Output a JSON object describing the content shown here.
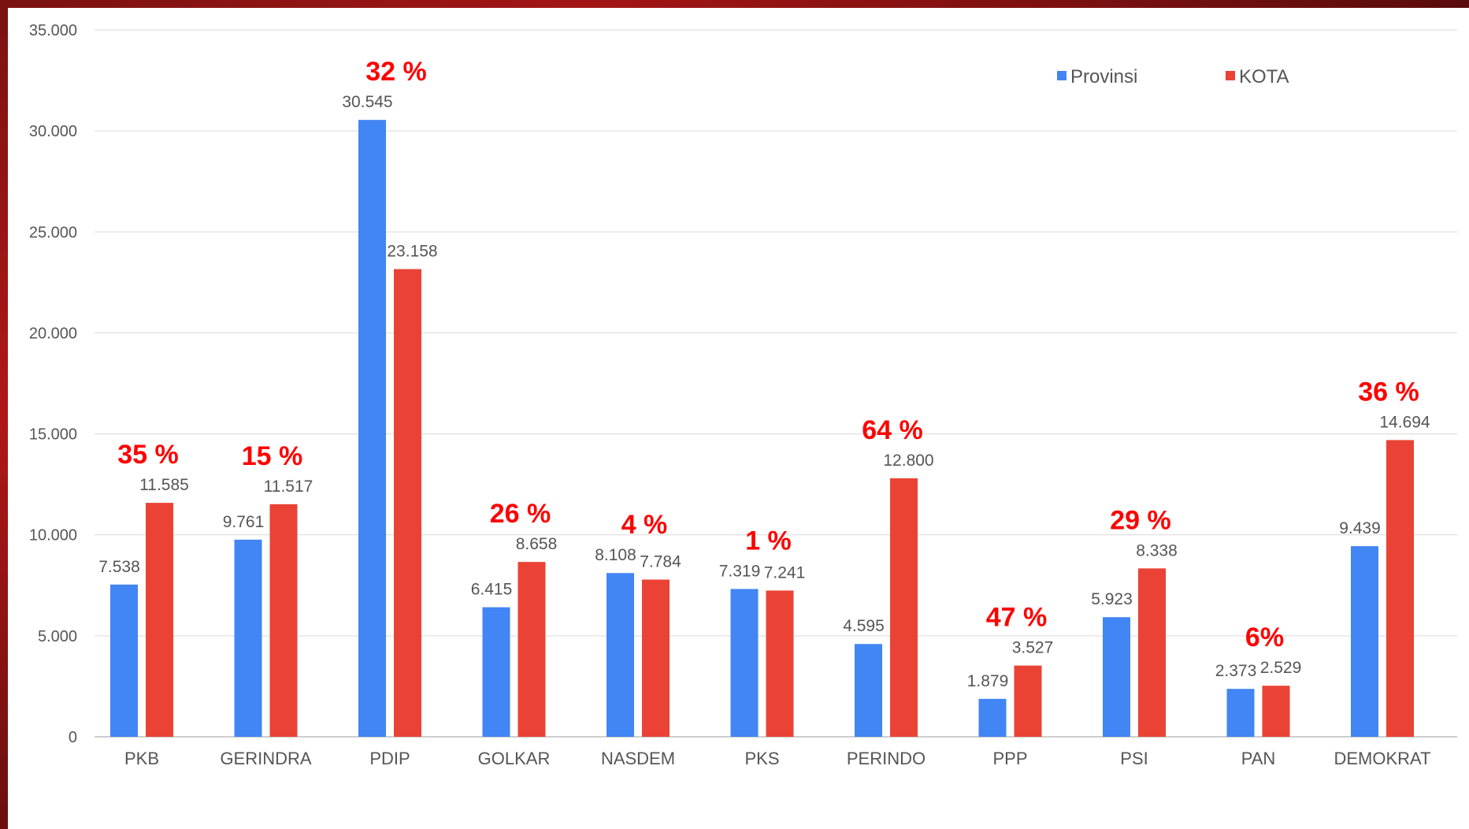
{
  "chart_data": {
    "type": "bar",
    "categories": [
      "PKB",
      "GERINDRA",
      "PDIP",
      "GOLKAR",
      "NASDEM",
      "PKS",
      "PERINDO",
      "PPP",
      "PSI",
      "PAN",
      "DEMOKRAT"
    ],
    "series": [
      {
        "name": "Provinsi",
        "color": "#4285f4",
        "values": [
          7538,
          9761,
          30545,
          6415,
          8108,
          7319,
          4595,
          1879,
          5923,
          2373,
          9439
        ],
        "labels": [
          "7.538",
          "9.761",
          "30.545",
          "6.415",
          "8.108",
          "7.319",
          "4.595",
          "1.879",
          "5.923",
          "2.373",
          "9.439"
        ]
      },
      {
        "name": "KOTA",
        "color": "#ea4335",
        "values": [
          11585,
          11517,
          23158,
          8658,
          7784,
          7241,
          12800,
          3527,
          8338,
          2529,
          14694
        ],
        "labels": [
          "11.585",
          "11.517",
          "23.158",
          "8.658",
          "7.784",
          "7.241",
          "12.800",
          "3.527",
          "8.338",
          "2.529",
          "14.694"
        ]
      }
    ],
    "annotations": [
      "35 %",
      "15 %",
      "32 %",
      "26 %",
      "4 %",
      "1 %",
      "64 %",
      "47 %",
      "29 %",
      "6%",
      "36 %"
    ],
    "annotation_color": "#ff0000",
    "y_ticks": [
      0,
      5000,
      10000,
      15000,
      20000,
      25000,
      30000,
      35000
    ],
    "y_tick_labels": [
      "0",
      "5.000",
      "10.000",
      "15.000",
      "20.000",
      "25.000",
      "30.000",
      "35.000"
    ],
    "ylim": [
      0,
      35000
    ],
    "grid": true,
    "legend_position": "top-right",
    "title": "",
    "xlabel": "",
    "ylabel": ""
  }
}
